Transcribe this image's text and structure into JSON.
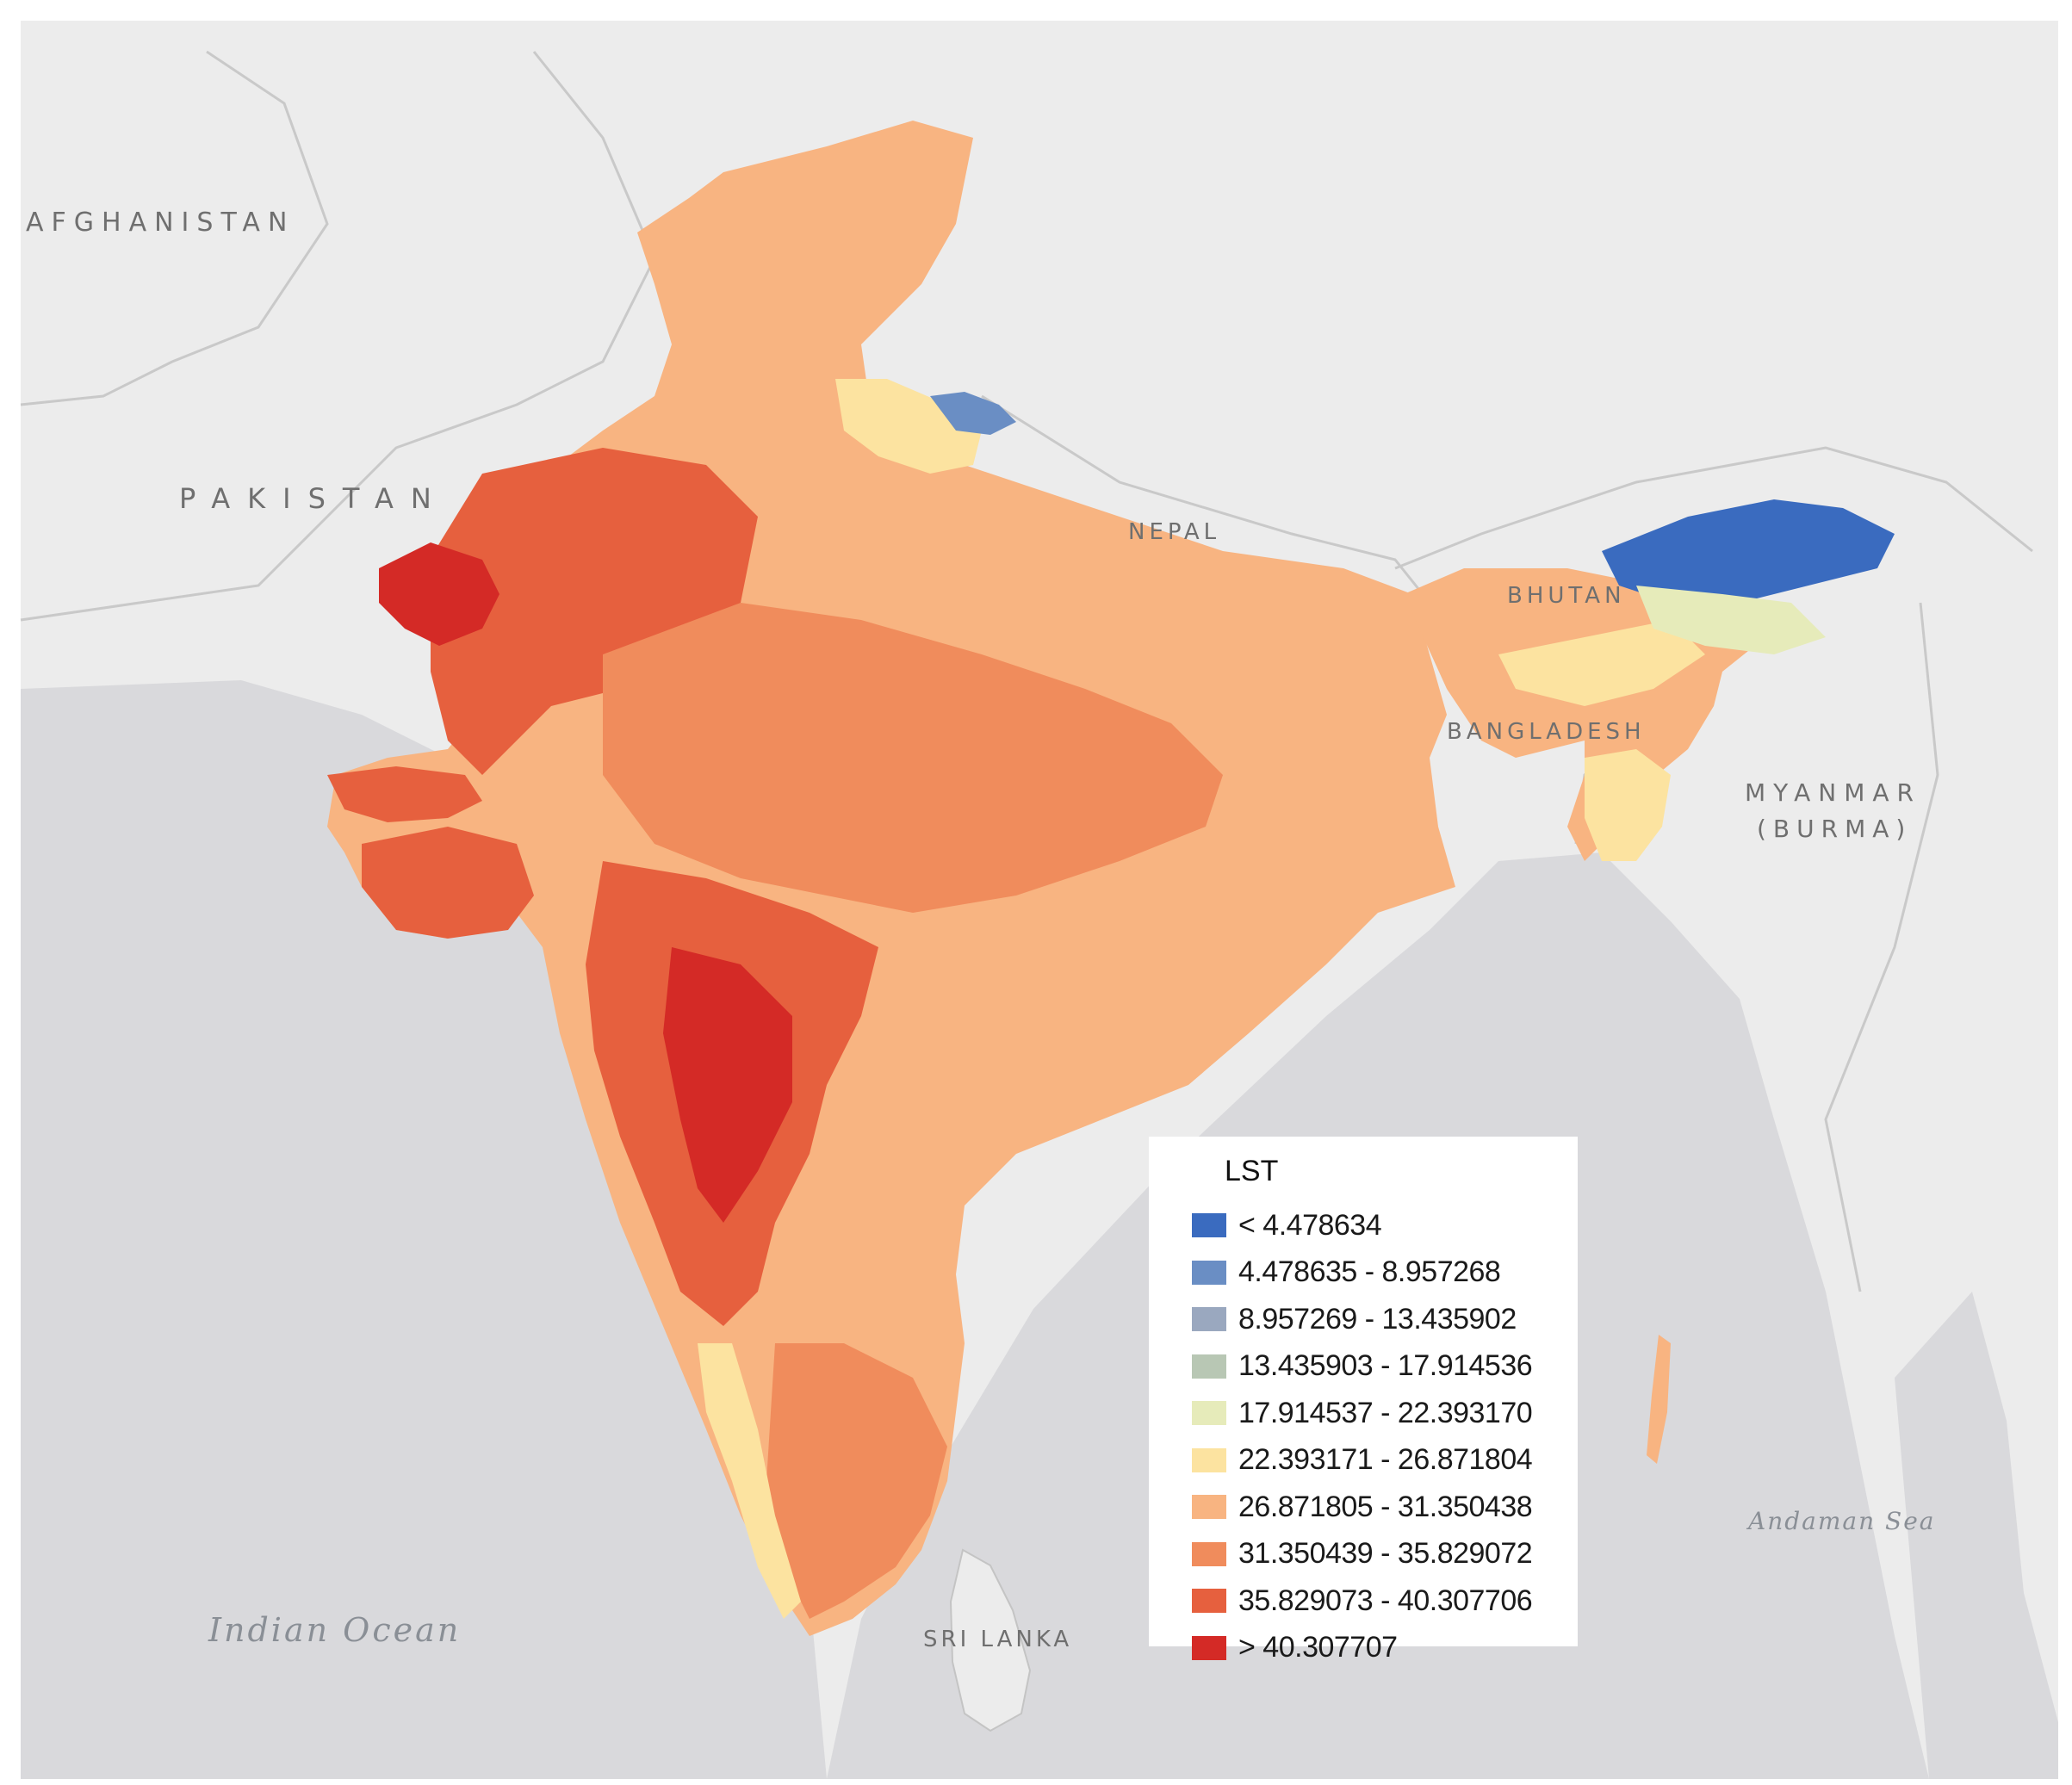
{
  "map": {
    "labels": {
      "afghanistan": "AFGHANISTAN",
      "pakistan": "PAKISTAN",
      "nepal": "NEPAL",
      "bhutan": "BHUTAN",
      "bangladesh": "BANGLADESH",
      "myanmar_line1": "MYANMAR",
      "myanmar_line2": "(BURMA)",
      "indian_ocean": "Indian Ocean",
      "andaman_sea": "Andaman Sea",
      "sri_lanka": "SRI LANKA"
    },
    "colors": {
      "land": "#ececec",
      "sea": "#d9d9dc",
      "border": "#c4c4c4"
    }
  },
  "legend": {
    "title": "LST",
    "classes": [
      {
        "label": "< 4.478634",
        "color": "#3a6bbf"
      },
      {
        "label": "4.478635 - 8.957268",
        "color": "#6a8ec4"
      },
      {
        "label": "8.957269 - 13.435902",
        "color": "#9aa8bf"
      },
      {
        "label": "13.435903 - 17.914536",
        "color": "#b8c7b4"
      },
      {
        "label": "17.914537 - 22.393170",
        "color": "#e6ebba"
      },
      {
        "label": "22.393171 - 26.871804",
        "color": "#fce3a0"
      },
      {
        "label": "26.871805 - 31.350438",
        "color": "#f8b481"
      },
      {
        "label": "31.350439 - 35.829072",
        "color": "#f08c5c"
      },
      {
        "label": "35.829073 - 40.307706",
        "color": "#e6603e"
      },
      {
        "label": "> 40.307707",
        "color": "#d42a26"
      }
    ]
  }
}
